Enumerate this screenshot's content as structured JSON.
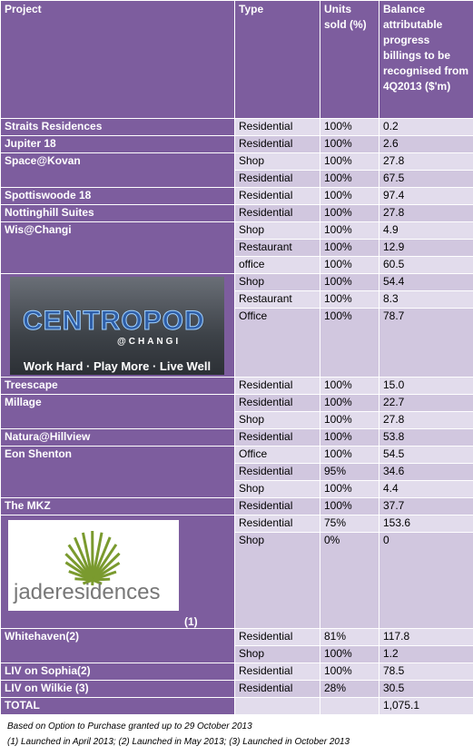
{
  "table": {
    "columns": [
      "Project",
      "Type",
      "Units sold (%)",
      "Balance attributable progress billings to be recognised from 4Q2013  ($'m)"
    ],
    "projects": [
      {
        "name": "Straits Residences",
        "entries": [
          {
            "type": "Residential",
            "sold": "100%",
            "balance": "0.2"
          }
        ]
      },
      {
        "name": "Jupiter 18",
        "entries": [
          {
            "type": "Residential",
            "sold": "100%",
            "balance": "2.6"
          }
        ]
      },
      {
        "name": "Space@Kovan",
        "entries": [
          {
            "type": "Shop",
            "sold": "100%",
            "balance": "27.8"
          },
          {
            "type": "Residential",
            "sold": "100%",
            "balance": "67.5"
          }
        ]
      },
      {
        "name": "Spottiswoode 18",
        "entries": [
          {
            "type": "Residential",
            "sold": "100%",
            "balance": "97.4"
          }
        ]
      },
      {
        "name": "Nottinghill Suites",
        "entries": [
          {
            "type": "Residential",
            "sold": "100%",
            "balance": "27.8"
          }
        ]
      },
      {
        "name": "Wis@Changi",
        "entries": [
          {
            "type": "Shop",
            "sold": "100%",
            "balance": "4.9"
          },
          {
            "type": "Restaurant",
            "sold": "100%",
            "balance": "12.9"
          },
          {
            "type": "office",
            "sold": "100%",
            "balance": "60.5"
          }
        ]
      },
      {
        "logo": {
          "name": "CENTROPOD",
          "sub": "@CHANGI",
          "tagline": "Work Hard · Play More · Live Well"
        },
        "entries": [
          {
            "type": "Shop",
            "sold": "100%",
            "balance": "54.4"
          },
          {
            "type": "Restaurant",
            "sold": "100%",
            "balance": "8.3"
          },
          {
            "type": "Office",
            "sold": "100%",
            "balance": "78.7"
          }
        ]
      },
      {
        "name": "Treescape",
        "entries": [
          {
            "type": "Residential",
            "sold": "100%",
            "balance": "15.0"
          }
        ]
      },
      {
        "name": "Millage",
        "entries": [
          {
            "type": "Residential",
            "sold": "100%",
            "balance": "22.7"
          },
          {
            "type": "Shop",
            "sold": "100%",
            "balance": "27.8"
          }
        ]
      },
      {
        "name": "Natura@Hillview",
        "entries": [
          {
            "type": "Residential",
            "sold": "100%",
            "balance": "53.8"
          }
        ]
      },
      {
        "name": "Eon Shenton",
        "entries": [
          {
            "type": "Office",
            "sold": "100%",
            "balance": "54.5"
          },
          {
            "type": "Residential",
            "sold": "95%",
            "balance": "34.6"
          },
          {
            "type": "Shop",
            "sold": "100%",
            "balance": "4.4"
          }
        ]
      },
      {
        "name": "The MKZ",
        "entries": [
          {
            "type": "Residential",
            "sold": "100%",
            "balance": "37.7"
          }
        ]
      },
      {
        "logo": {
          "name": "jaderesidences"
        },
        "note": "(1)",
        "entries": [
          {
            "type": "Residential",
            "sold": "75%",
            "balance": "153.6"
          },
          {
            "type": "Shop",
            "sold": "0%",
            "balance": "0"
          }
        ]
      },
      {
        "name": "Whitehaven(2)",
        "entries": [
          {
            "type": "Residential",
            "sold": "81%",
            "balance": "117.8"
          },
          {
            "type": "Shop",
            "sold": "100%",
            "balance": "1.2"
          }
        ]
      },
      {
        "name": "LIV on Sophia(2)",
        "entries": [
          {
            "type": "Residential",
            "sold": "100%",
            "balance": "78.5"
          }
        ]
      },
      {
        "name": "LIV on Wilkie (3)",
        "entries": [
          {
            "type": "Residential",
            "sold": "28%",
            "balance": "30.5"
          }
        ]
      }
    ],
    "total": {
      "label": "TOTAL",
      "balance": "1,075.1"
    }
  },
  "footnotes": [
    "Based on Option to Purchase granted up to 29 October 2013",
    "(1) Launched in April 2013; (2) Launched in May 2013; (3) Launched in October 2013"
  ]
}
